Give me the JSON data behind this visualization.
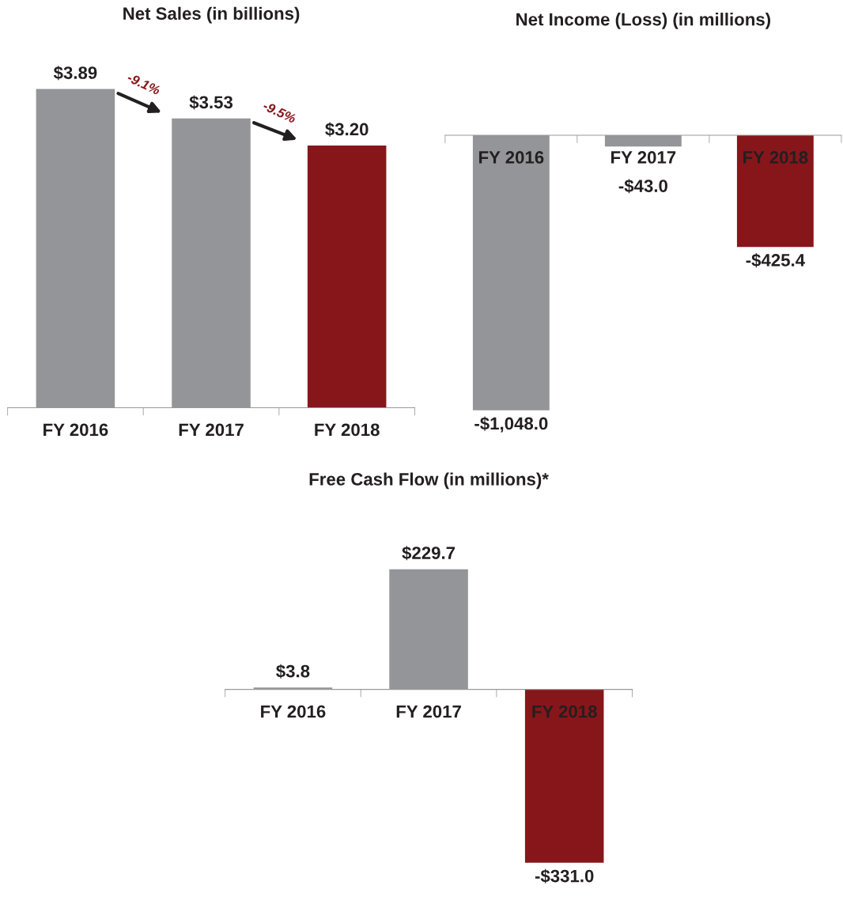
{
  "chart_data": [
    {
      "type": "bar",
      "title": "Net Sales (in billions)",
      "categories": [
        "FY 2016",
        "FY 2017",
        "FY 2018"
      ],
      "values": [
        3.89,
        3.53,
        3.2
      ],
      "colors": [
        "#939598",
        "#939598",
        "#87161a"
      ],
      "value_labels": [
        "$3.89",
        "$3.53",
        "$3.20"
      ],
      "tick_labels": "x",
      "grid": false,
      "legend": false,
      "annotations": [
        "-9.1%",
        "-9.5%"
      ]
    },
    {
      "type": "bar",
      "title": "Net Income (Loss) (in millions)",
      "categories": [
        "FY 2016",
        "FY 2017",
        "FY 2018"
      ],
      "values": [
        -1048.0,
        -43.0,
        -425.4
      ],
      "colors": [
        "#939598",
        "#939598",
        "#87161a"
      ],
      "value_labels": [
        "-$1,048.0",
        "-$43.0",
        "-$425.4"
      ],
      "tick_labels": "x",
      "grid": false,
      "legend": false
    },
    {
      "type": "bar",
      "title": "Free Cash Flow (in millions)*",
      "categories": [
        "FY 2016",
        "FY 2017",
        "FY 2018"
      ],
      "values": [
        3.8,
        229.7,
        -331.0
      ],
      "colors": [
        "#939598",
        "#939598",
        "#87161a"
      ],
      "value_labels": [
        "$3.8",
        "$229.7",
        "-$331.0"
      ],
      "tick_labels": "x",
      "grid": false,
      "legend": false
    }
  ]
}
